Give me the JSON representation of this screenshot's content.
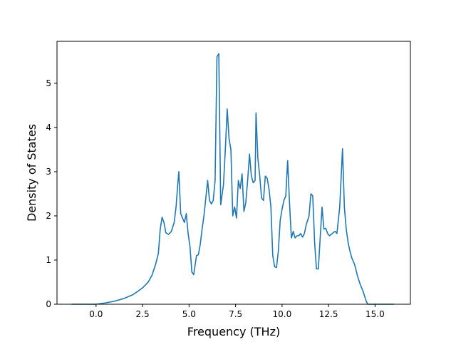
{
  "chart_data": {
    "type": "line",
    "title": "",
    "xlabel": "Frequency (THz)",
    "ylabel": "Density of States",
    "xlim": [
      -2.1,
      16.9
    ],
    "ylim": [
      0,
      5.95
    ],
    "xticks": [
      0.0,
      2.5,
      5.0,
      7.5,
      10.0,
      12.5,
      15.0
    ],
    "xtick_labels": [
      "0.0",
      "2.5",
      "5.0",
      "7.5",
      "10.0",
      "12.5",
      "15.0"
    ],
    "yticks": [
      0,
      1,
      2,
      3,
      4,
      5
    ],
    "ytick_labels": [
      "0",
      "1",
      "2",
      "3",
      "4",
      "5"
    ],
    "grid": false,
    "legend": null,
    "series": [
      {
        "color": "#1f77b4",
        "x": [
          -1.3,
          0.0,
          0.5,
          1.0,
          1.5,
          2.0,
          2.5,
          2.8,
          3.0,
          3.2,
          3.35,
          3.45,
          3.55,
          3.65,
          3.75,
          3.9,
          4.05,
          4.2,
          4.3,
          4.4,
          4.45,
          4.55,
          4.65,
          4.75,
          4.85,
          4.95,
          5.05,
          5.15,
          5.25,
          5.4,
          5.5,
          5.6,
          5.7,
          5.8,
          5.9,
          6.0,
          6.1,
          6.2,
          6.3,
          6.4,
          6.5,
          6.6,
          6.7,
          6.85,
          6.95,
          7.05,
          7.15,
          7.25,
          7.35,
          7.45,
          7.55,
          7.65,
          7.75,
          7.85,
          7.95,
          8.05,
          8.15,
          8.25,
          8.35,
          8.45,
          8.55,
          8.6,
          8.7,
          8.8,
          8.9,
          9.0,
          9.1,
          9.2,
          9.3,
          9.4,
          9.5,
          9.6,
          9.7,
          9.8,
          9.9,
          10.0,
          10.1,
          10.2,
          10.3,
          10.4,
          10.5,
          10.6,
          10.7,
          10.8,
          10.9,
          11.0,
          11.1,
          11.2,
          11.3,
          11.45,
          11.55,
          11.65,
          11.75,
          11.85,
          11.95,
          12.05,
          12.15,
          12.25,
          12.35,
          12.45,
          12.55,
          12.7,
          12.85,
          12.95,
          13.1,
          13.25,
          13.35,
          13.45,
          13.55,
          13.65,
          13.75,
          13.9,
          14.05,
          14.2,
          14.35,
          14.5,
          14.6,
          14.7,
          15.0,
          16.0
        ],
        "y": [
          0,
          0,
          0.03,
          0.07,
          0.13,
          0.22,
          0.37,
          0.5,
          0.65,
          0.9,
          1.15,
          1.7,
          1.97,
          1.85,
          1.62,
          1.58,
          1.65,
          1.85,
          2.2,
          2.75,
          3.0,
          2.05,
          1.95,
          1.85,
          2.05,
          1.6,
          1.3,
          0.73,
          0.67,
          1.1,
          1.12,
          1.35,
          1.7,
          2.0,
          2.4,
          2.8,
          2.35,
          2.27,
          2.35,
          2.8,
          5.6,
          5.67,
          2.25,
          2.7,
          3.5,
          4.42,
          3.75,
          3.5,
          2.0,
          2.2,
          1.95,
          2.8,
          2.62,
          2.95,
          2.1,
          2.3,
          2.8,
          3.4,
          2.9,
          2.75,
          2.8,
          4.33,
          3.3,
          2.9,
          2.4,
          2.35,
          2.9,
          2.85,
          2.6,
          2.2,
          1.1,
          0.85,
          0.83,
          1.2,
          1.9,
          2.15,
          2.35,
          2.45,
          3.25,
          2.3,
          1.5,
          1.65,
          1.5,
          1.55,
          1.55,
          1.6,
          1.52,
          1.6,
          1.8,
          2.0,
          2.5,
          2.45,
          1.4,
          0.8,
          0.8,
          1.5,
          2.2,
          1.7,
          1.72,
          1.6,
          1.55,
          1.6,
          1.65,
          1.6,
          2.2,
          3.52,
          2.2,
          1.7,
          1.4,
          1.2,
          1.05,
          0.9,
          0.65,
          0.45,
          0.3,
          0.1,
          0,
          0,
          0,
          0
        ]
      }
    ]
  }
}
